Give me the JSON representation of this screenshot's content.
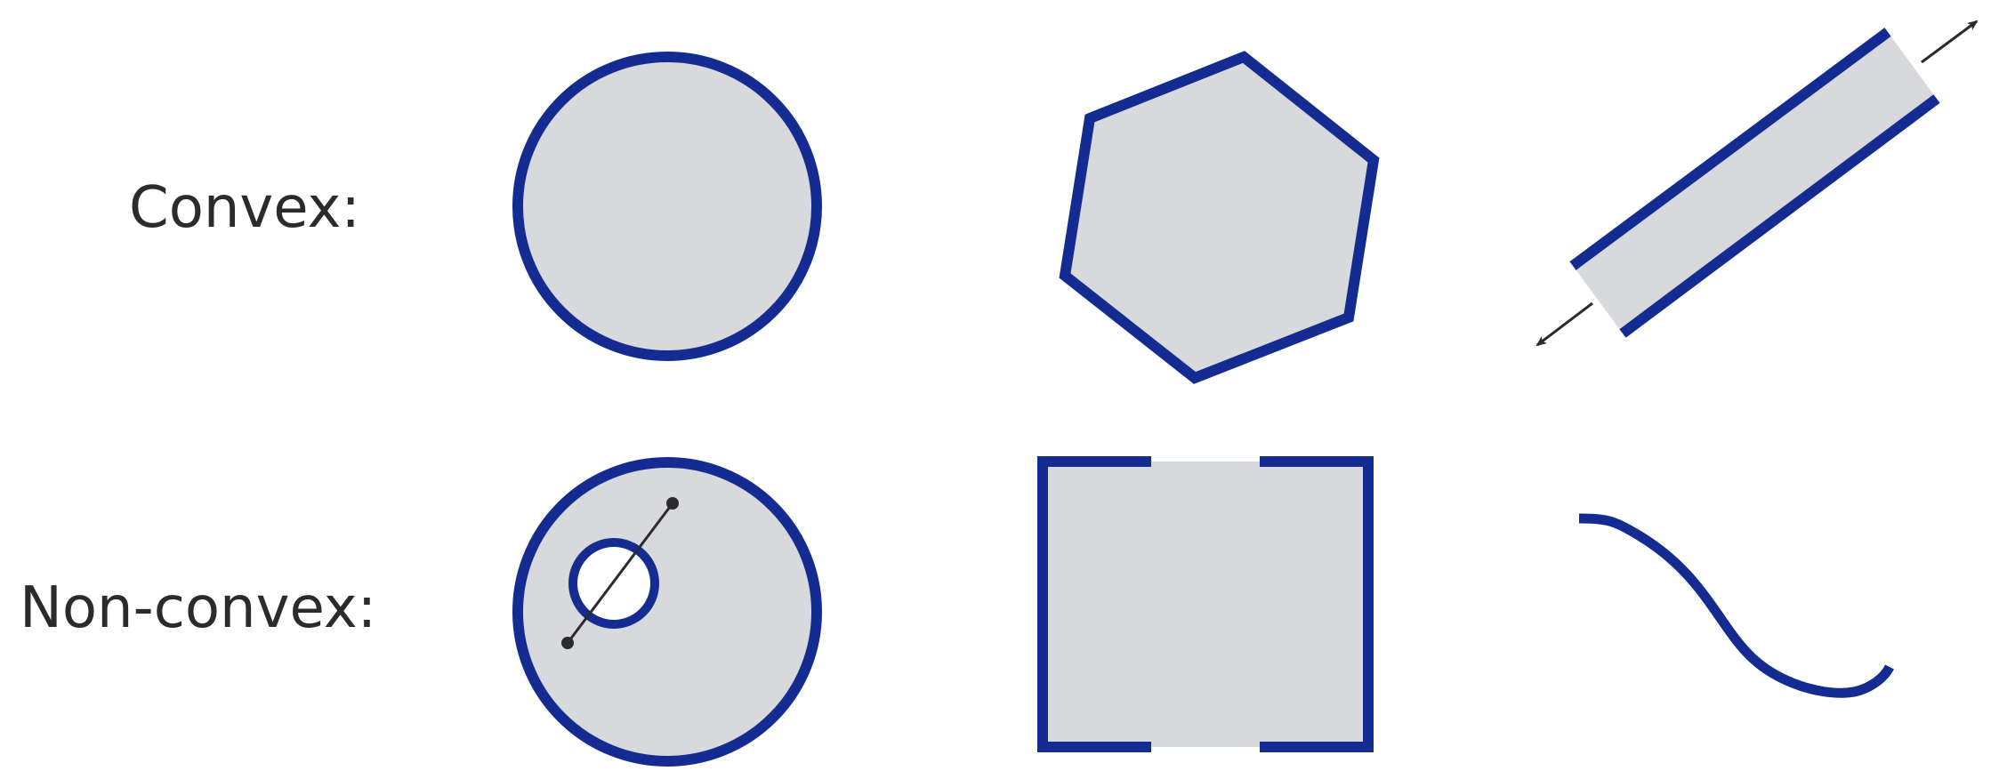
{
  "rows": {
    "convex_label": "Convex:",
    "nonconvex_label": "Non-convex:"
  },
  "colors": {
    "stroke": "#142c91",
    "fill": "#d8d9dc",
    "hole": "#ffffff",
    "text": "#2b2b2b",
    "segment": "#2b2b2b"
  }
}
